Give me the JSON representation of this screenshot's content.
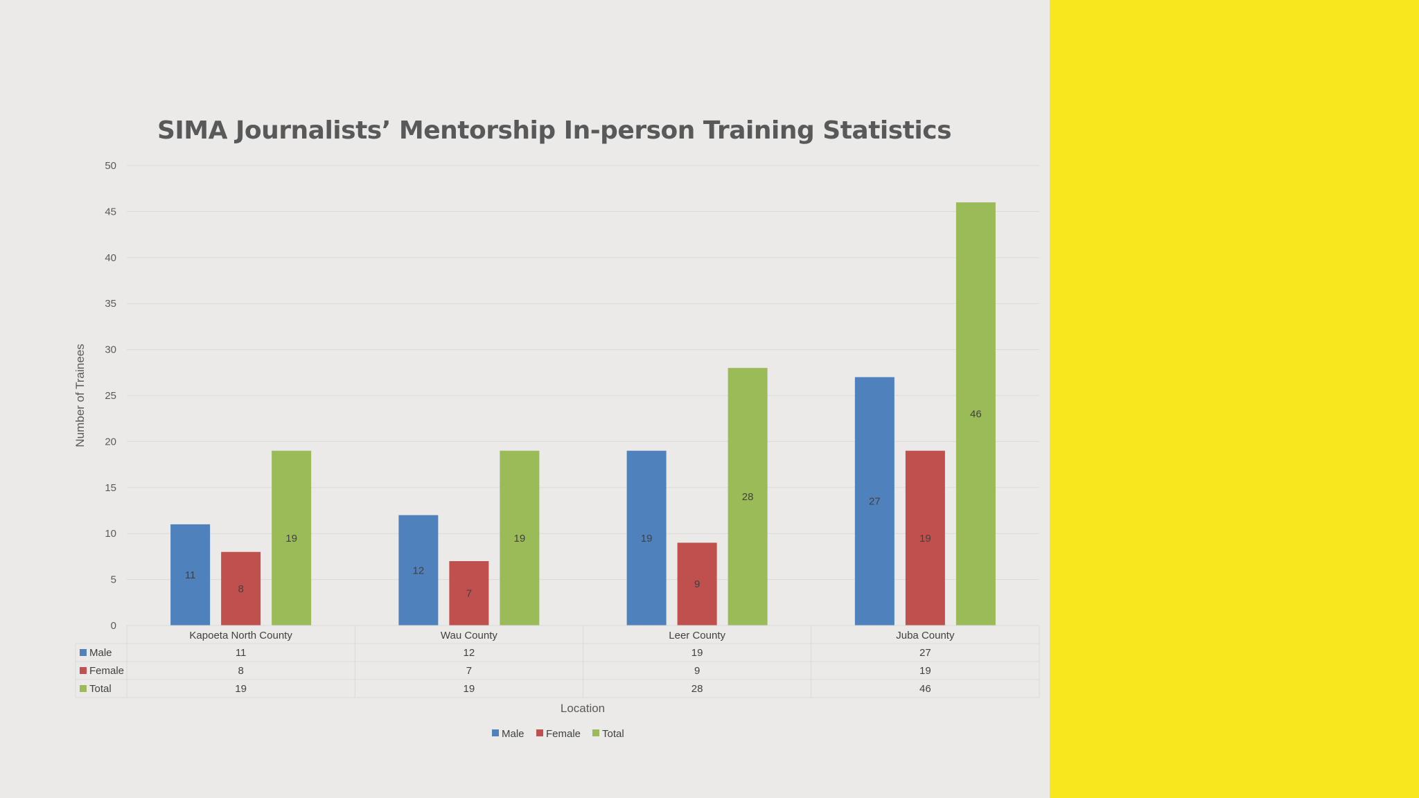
{
  "chart_data": {
    "type": "bar",
    "title": "SIMA Journalists’ Mentorship In-person Training Statistics",
    "xlabel": "Location",
    "ylabel": "Number of Trainees",
    "ylim": [
      0,
      50
    ],
    "ytick_step": 5,
    "grid": true,
    "legend_position": "bottom",
    "data_table": true,
    "categories": [
      "Kapoeta North County",
      "Wau County",
      "Leer County",
      "Juba County"
    ],
    "series": [
      {
        "name": "Male",
        "color": "#4f81bd",
        "values": [
          11,
          12,
          19,
          27
        ]
      },
      {
        "name": "Female",
        "color": "#c0504d",
        "values": [
          8,
          7,
          9,
          19
        ]
      },
      {
        "name": "Total",
        "color": "#9bbb59",
        "values": [
          19,
          19,
          28,
          46
        ]
      }
    ]
  },
  "colors": {
    "background": "#ebeae8",
    "side_panel": "#f8e71c"
  }
}
